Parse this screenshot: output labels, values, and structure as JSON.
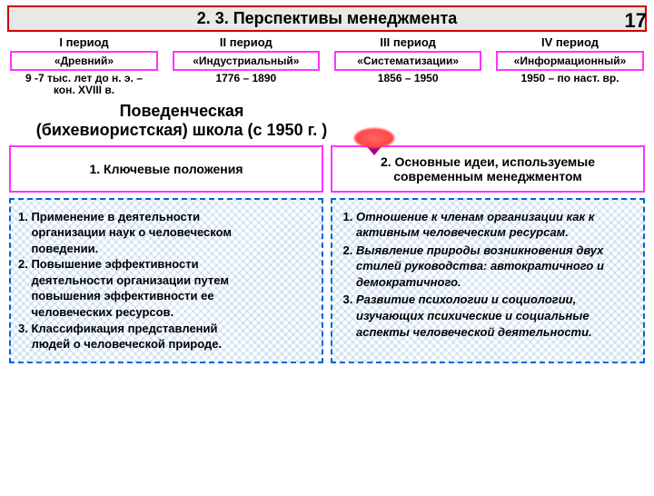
{
  "page_number": "17",
  "title": "2. 3. Перспективы менеджмента",
  "periods": [
    {
      "label": "I период",
      "name": "«Древний»",
      "dates": "9 -7 тыс. лет до н. э. –\nкон. XVIII в."
    },
    {
      "label": "II период",
      "name": "«Индустриальный»",
      "dates": "1776 – 1890"
    },
    {
      "label": "III период",
      "name": "«Систематизации»",
      "dates": "1856 – 1950"
    },
    {
      "label": "IV период",
      "name": "«Информационный»",
      "dates": "1950 – по наст. вр."
    }
  ],
  "school_title": "Поведенческая\n(бихевиористская) школа (с 1950 г. )",
  "columns": [
    {
      "header": "1. Ключевые положения",
      "body": "1. Применение в деятельности\n    организации наук о человеческом\n    поведении.\n2. Повышение эффективности\n    деятельности организации путем\n    повышения эффективности ее\n    человеческих ресурсов.\n3. Классификация представлений\n    людей о человеческой природе."
    },
    {
      "header": "2. Основные идеи, используемые современным менеджментом",
      "items": [
        "Отношение к членам организации как к активным человеческим ресурсам.",
        "Выявление природы возникновения двух стилей руководства: автократичного и демократичного.",
        "Развитие психологии и социологии, изучающих психические и социальные аспекты человеческой деятельности."
      ]
    }
  ],
  "colors": {
    "title_border": "#cc0000",
    "period_border": "#ff33ff",
    "col_border": "#0066cc"
  }
}
